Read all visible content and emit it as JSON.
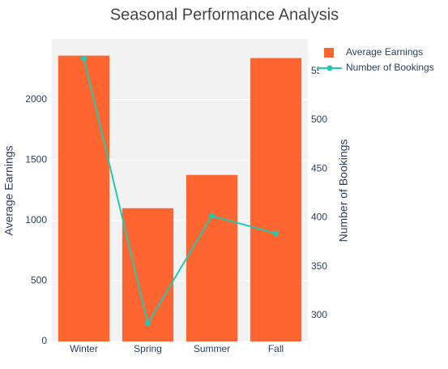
{
  "chart_data": {
    "type": "bar_line",
    "title": "Seasonal Performance Analysis",
    "categories": [
      "Winter",
      "Spring",
      "Summer",
      "Fall"
    ],
    "series": [
      {
        "name": "Average Earnings",
        "type": "bar",
        "color": "#ff6530",
        "values": [
          2362,
          1101,
          1376,
          2342
        ]
      },
      {
        "name": "Number of Bookings",
        "type": "line",
        "axis": "y2",
        "color": "#1ecbb0",
        "values": [
          563,
          292,
          402,
          384
        ]
      }
    ],
    "ylabel": "Average Earnings",
    "y2label": "Number of Bookings",
    "ylim": [
      0,
      2500
    ],
    "yticks": [
      0,
      500,
      1000,
      1500,
      2000
    ],
    "y2lim": [
      273.5,
      583
    ],
    "y2ticks": [
      300,
      350,
      400,
      450,
      500,
      550
    ],
    "grid": true,
    "legend": "top-right"
  }
}
